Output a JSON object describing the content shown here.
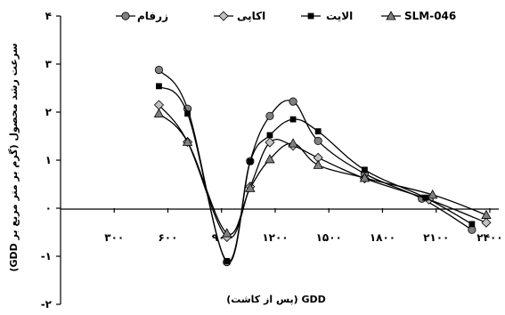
{
  "chart_data": {
    "type": "line",
    "title": "",
    "xlabel": "GDD (پس از کاشت)",
    "ylabel": "سرعت رشد محصول (گرم بر متر مربع بر GDD)",
    "x_tick_labels": [
      {
        "value": 300,
        "label": "۳۰۰"
      },
      {
        "value": 600,
        "label": "۶۰۰"
      },
      {
        "value": 900,
        "label": "۹۰۰"
      },
      {
        "value": 1200,
        "label": "۱۲۰۰"
      },
      {
        "value": 1500,
        "label": "۱۵۰۰"
      },
      {
        "value": 1800,
        "label": "۱۸۰۰"
      },
      {
        "value": 2100,
        "label": "۲۱۰۰"
      },
      {
        "value": 2400,
        "label": "۲۴۰۰"
      }
    ],
    "y_tick_labels": [
      {
        "value": 4,
        "label": "۴"
      },
      {
        "value": 3,
        "label": "۳"
      },
      {
        "value": 2,
        "label": "۲"
      },
      {
        "value": 1,
        "label": "۱"
      },
      {
        "value": 0,
        "label": "۰"
      },
      {
        "value": -1,
        "label": "-۱"
      },
      {
        "value": -2,
        "label": "-۲"
      }
    ],
    "xlim": [
      0,
      2450
    ],
    "ylim": [
      -2,
      4
    ],
    "grid": false,
    "legend_position": "top",
    "series": [
      {
        "name": "زرفام",
        "marker": "circle",
        "color": "#808080",
        "x": [
          550,
          710,
          930,
          1060,
          1170,
          1300,
          1440,
          1700,
          2020,
          2300
        ],
        "y": [
          2.88,
          2.07,
          -1.12,
          0.98,
          1.92,
          2.22,
          1.4,
          0.72,
          0.2,
          -0.45
        ]
      },
      {
        "name": "اکاپی",
        "marker": "diamond",
        "color": "#c0c0c0",
        "x": [
          550,
          710,
          930,
          1060,
          1170,
          1300,
          1440,
          1700,
          2060,
          2380
        ],
        "y": [
          2.15,
          1.38,
          -0.6,
          0.45,
          1.37,
          1.3,
          1.05,
          0.62,
          0.18,
          -0.3
        ]
      },
      {
        "name": "الایت",
        "marker": "square",
        "color": "#000000",
        "x": [
          550,
          710,
          930,
          1060,
          1170,
          1300,
          1440,
          1700,
          2040,
          2300
        ],
        "y": [
          2.54,
          1.97,
          -1.1,
          0.97,
          1.52,
          1.85,
          1.6,
          0.8,
          0.22,
          -0.33
        ]
      },
      {
        "name": "SLM-046",
        "marker": "triangle",
        "color": "#808080",
        "x": [
          550,
          710,
          930,
          1060,
          1170,
          1300,
          1440,
          1700,
          2080,
          2380
        ],
        "y": [
          1.97,
          1.38,
          -0.52,
          0.42,
          1.02,
          1.35,
          0.9,
          0.63,
          0.28,
          -0.14
        ]
      }
    ]
  }
}
